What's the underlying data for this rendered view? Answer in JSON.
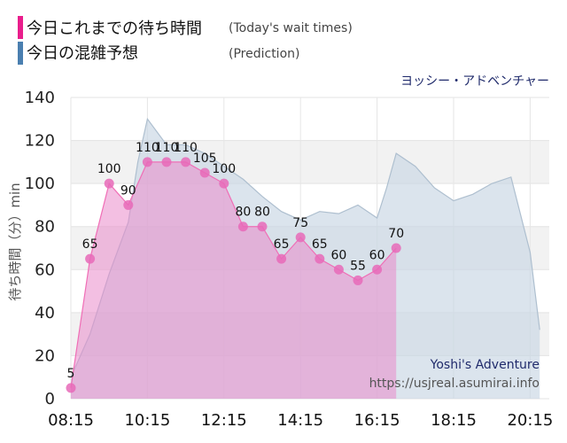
{
  "legend": [
    {
      "label_jp": "今日これまでの待ち時間",
      "label_en": "(Today's wait times)",
      "color": "#e91e8c"
    },
    {
      "label_jp": "今日の混雑予想",
      "label_en": "(Prediction)",
      "color": "#4a7fb0"
    }
  ],
  "attraction_name": "ヨッシー・アドベンチャー",
  "watermark": {
    "title": "Yoshi's Adventure",
    "url": "https://usjreal.asumirai.info"
  },
  "colors": {
    "actual_line": "#f06eb6",
    "actual_fill": "#e98bcb",
    "actual_marker": "#e86ab8",
    "prediction_line": "#aebfcf",
    "prediction_fill": "#c7d6e3",
    "plot_band": "#f2f2f2"
  },
  "chart_data": {
    "type": "line",
    "title": "",
    "xlabel": "",
    "ylabel": "待ち時間（分）min",
    "ylim": [
      0,
      140
    ],
    "yticks": [
      0,
      20,
      40,
      60,
      80,
      100,
      120,
      140
    ],
    "xticks": [
      "08:15",
      "10:15",
      "12:15",
      "14:15",
      "16:15",
      "18:15",
      "20:15"
    ],
    "grid": true,
    "series": [
      {
        "name": "今日これまでの待ち時間",
        "x": [
          "08:15",
          "08:45",
          "09:15",
          "09:45",
          "10:15",
          "10:45",
          "11:15",
          "11:45",
          "12:15",
          "12:45",
          "13:15",
          "13:45",
          "14:15",
          "14:45",
          "15:15",
          "15:45",
          "16:15",
          "16:45"
        ],
        "values": [
          5,
          65,
          100,
          90,
          110,
          110,
          110,
          105,
          100,
          80,
          80,
          65,
          75,
          65,
          60,
          55,
          60,
          70
        ]
      },
      {
        "name": "今日の混雑予想",
        "x": [
          "08:15",
          "08:45",
          "09:15",
          "09:45",
          "10:00",
          "10:15",
          "10:30",
          "10:45",
          "11:15",
          "11:45",
          "12:15",
          "12:45",
          "13:15",
          "13:45",
          "14:15",
          "14:45",
          "15:15",
          "15:45",
          "16:15",
          "16:30",
          "16:45",
          "17:15",
          "17:45",
          "18:15",
          "18:45",
          "19:15",
          "19:45",
          "20:15",
          "20:30"
        ],
        "values": [
          10,
          30,
          58,
          82,
          110,
          130,
          124,
          118,
          118,
          114,
          108,
          102,
          94,
          87,
          83,
          87,
          86,
          90,
          84,
          98,
          114,
          108,
          98,
          92,
          95,
          100,
          103,
          68,
          32
        ]
      }
    ]
  }
}
